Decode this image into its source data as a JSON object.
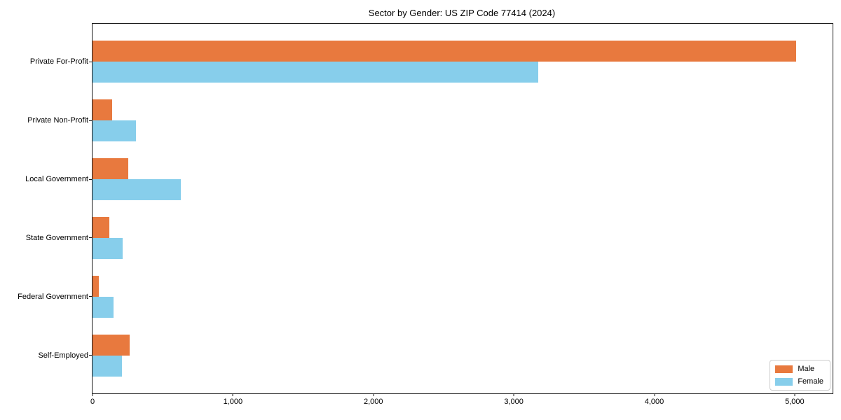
{
  "title": "Sector by Gender: US ZIP Code 77414 (2024)",
  "colors": {
    "male": "#e8793e",
    "female": "#87ceeb",
    "spine": "#1a1a1a",
    "text": "#000000",
    "legend_border": "#cccccc",
    "background": "#ffffff"
  },
  "legend": {
    "position": "lower right",
    "items": [
      {
        "label": "Male",
        "color": "#e8793e"
      },
      {
        "label": "Female",
        "color": "#87ceeb"
      }
    ]
  },
  "chart_data": {
    "type": "bar",
    "orientation": "horizontal",
    "title": "Sector by Gender: US ZIP Code 77414 (2024)",
    "categories": [
      "Private For-Profit",
      "Private Non-Profit",
      "Local Government",
      "State Government",
      "Federal Government",
      "Self-Employed"
    ],
    "series": [
      {
        "name": "Male",
        "color": "#e8793e",
        "values": [
          5010,
          140,
          255,
          120,
          45,
          265
        ]
      },
      {
        "name": "Female",
        "color": "#87ceeb",
        "values": [
          3175,
          310,
          630,
          215,
          150,
          210
        ]
      }
    ],
    "xlabel": "",
    "ylabel": "",
    "xlim": [
      0,
      5270
    ],
    "xticks": [
      0,
      1000,
      2000,
      3000,
      4000,
      5000
    ],
    "xtick_labels": [
      "0",
      "1,000",
      "2,000",
      "3,000",
      "4,000",
      "5,000"
    ],
    "grid": false,
    "legend_position": "lower right"
  }
}
